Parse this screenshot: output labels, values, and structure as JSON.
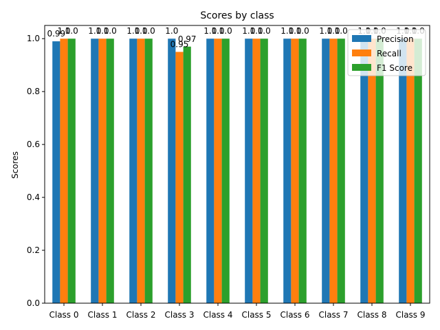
{
  "chart_data": {
    "type": "bar",
    "title": "Scores by class",
    "xlabel": "",
    "ylabel": "Scores",
    "categories": [
      "Class 0",
      "Class 1",
      "Class 2",
      "Class 3",
      "Class 4",
      "Class 5",
      "Class 6",
      "Class 7",
      "Class 8",
      "Class 9"
    ],
    "series": [
      {
        "name": "Precision",
        "color": "#1f77b4",
        "values": [
          0.99,
          1.0,
          1.0,
          1.0,
          1.0,
          1.0,
          1.0,
          1.0,
          1.0,
          1.0
        ],
        "labels": [
          "0.99",
          "1.0",
          "1.0",
          "1.0",
          "1.0",
          "1.0",
          "1.0",
          "1.0",
          "1.0",
          "1.0"
        ]
      },
      {
        "name": "Recall",
        "color": "#ff7f0e",
        "values": [
          1.0,
          1.0,
          1.0,
          0.95,
          1.0,
          1.0,
          1.0,
          1.0,
          1.0,
          1.0
        ],
        "labels": [
          "1.0",
          "1.0",
          "1.0",
          "0.95",
          "1.0",
          "1.0",
          "1.0",
          "1.0",
          "1.0",
          "1.0"
        ]
      },
      {
        "name": "F1 Score",
        "color": "#2ca02c",
        "values": [
          1.0,
          1.0,
          1.0,
          0.97,
          1.0,
          1.0,
          1.0,
          1.0,
          1.0,
          1.0
        ],
        "labels": [
          "1.0",
          "1.0",
          "1.0",
          "0.97",
          "1.0",
          "1.0",
          "1.0",
          "1.0",
          "1.0",
          "1.0"
        ]
      }
    ],
    "ylim": [
      0,
      1.05
    ],
    "yticks": [
      0.0,
      0.2,
      0.4,
      0.6,
      0.8,
      1.0
    ],
    "ytick_labels": [
      "0.0",
      "0.2",
      "0.4",
      "0.6",
      "0.8",
      "1.0"
    ],
    "grid": false,
    "legend_position": "top-right"
  }
}
